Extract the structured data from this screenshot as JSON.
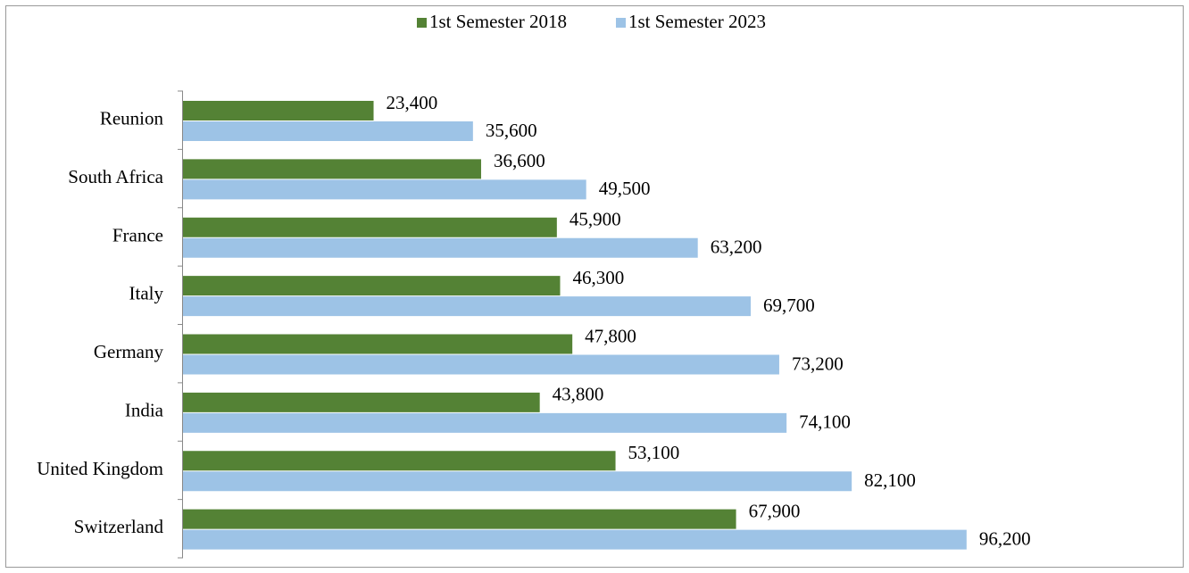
{
  "chart_data": {
    "type": "hbar",
    "categories": [
      "Reunion",
      "South Africa",
      "France",
      "Italy",
      "Germany",
      "India",
      "United Kingdom",
      "Switzerland"
    ],
    "series": [
      {
        "name": "1st Semester 2018",
        "color": "#548235",
        "values": [
          23400,
          36600,
          45900,
          46300,
          47800,
          43800,
          53100,
          67900
        ],
        "value_labels": [
          "23,400",
          "36,600",
          "45,900",
          "46,300",
          "47,800",
          "43,800",
          "53,100",
          "67,900"
        ]
      },
      {
        "name": "1st Semester 2023",
        "color": "#9dc3e6",
        "values": [
          35600,
          49500,
          63200,
          69700,
          73200,
          74100,
          82100,
          96200
        ],
        "value_labels": [
          "35,600",
          "49,500",
          "63,200",
          "69,700",
          "73,200",
          "74,100",
          "82,100",
          "96,200"
        ]
      }
    ],
    "xlim": [
      0,
      120000
    ],
    "legend": "top"
  }
}
